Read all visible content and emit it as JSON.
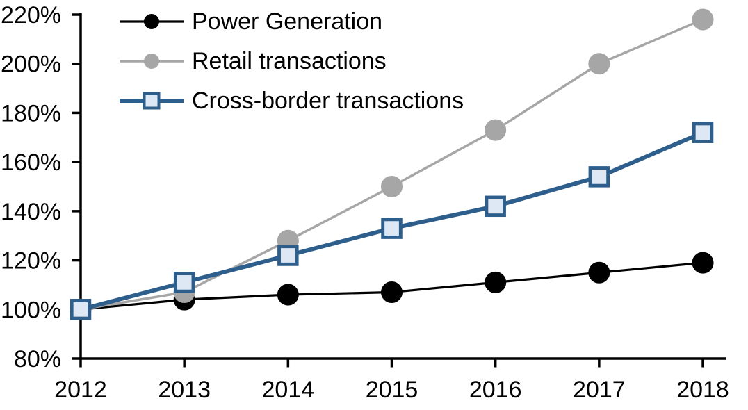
{
  "chart_data": {
    "type": "line",
    "title": "",
    "categories": [
      "2012",
      "2013",
      "2014",
      "2015",
      "2016",
      "2017",
      "2018"
    ],
    "series": [
      {
        "name": "Power Generation",
        "color": "#000000",
        "marker": "circle",
        "marker_fill": "#000000",
        "marker_stroke": "#000000",
        "line_width": 3.2,
        "values": [
          100,
          104,
          106,
          107,
          111,
          115,
          119
        ]
      },
      {
        "name": "Retail transactions",
        "color": "#A6A6A6",
        "marker": "circle",
        "marker_fill": "#A6A6A6",
        "marker_stroke": "#A6A6A6",
        "line_width": 3.5,
        "values": [
          100,
          107,
          128,
          150,
          173,
          200,
          218
        ]
      },
      {
        "name": "Cross-border transactions",
        "color": "#2D5E8C",
        "marker": "square",
        "marker_fill": "#DDE8F4",
        "marker_stroke": "#2D5E8C",
        "line_width": 6,
        "values": [
          100,
          111,
          122,
          133,
          142,
          154,
          172
        ]
      }
    ],
    "x_axis": {
      "tick_labels": [
        "2012",
        "2013",
        "2014",
        "2015",
        "2016",
        "2017",
        "2018"
      ]
    },
    "y_axis": {
      "min": 80,
      "max": 220,
      "step": 20,
      "tick_labels": [
        "80%",
        "100%",
        "120%",
        "140%",
        "160%",
        "180%",
        "200%",
        "220%"
      ]
    },
    "legend_position": "top-left",
    "grid": false,
    "background": "#FFFFFF",
    "axis_color": "#000000"
  }
}
